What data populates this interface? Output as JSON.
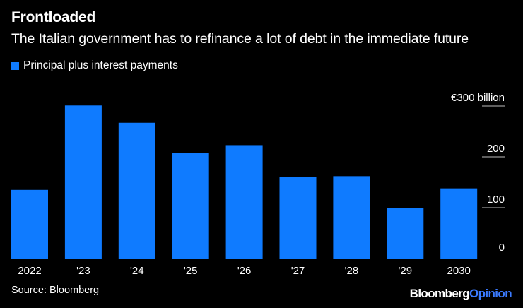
{
  "header": {
    "title": "Frontloaded",
    "subtitle": "The Italian government has to refinance a lot of debt in the immediate future"
  },
  "footer": {
    "source": "Source: Bloomberg",
    "brand_part1": "Bloomberg",
    "brand_part2": "Opinion"
  },
  "colors": {
    "background": "#000000",
    "bar": "#0f7bff",
    "text": "#ffffff",
    "brand_accent": "#3b7bff"
  },
  "chart_data": {
    "type": "bar",
    "title": "Frontloaded",
    "subtitle": "The Italian government has to refinance a lot of debt in the immediate future",
    "categories": [
      "2022",
      "'23",
      "'24",
      "'25",
      "'26",
      "'27",
      "'28",
      "'29",
      "2030"
    ],
    "series": [
      {
        "name": "Principal plus interest payments",
        "values": [
          135,
          301,
          267,
          208,
          223,
          160,
          162,
          100,
          138
        ]
      }
    ],
    "y_ticks": [
      {
        "value": 300,
        "label": "€300 billion"
      },
      {
        "value": 200,
        "label": "200"
      },
      {
        "value": 100,
        "label": "100"
      },
      {
        "value": 0,
        "label": "0"
      }
    ],
    "ylim": [
      0,
      320
    ],
    "xlabel": "",
    "ylabel": "",
    "grid": false,
    "legend_position": "top-left"
  }
}
